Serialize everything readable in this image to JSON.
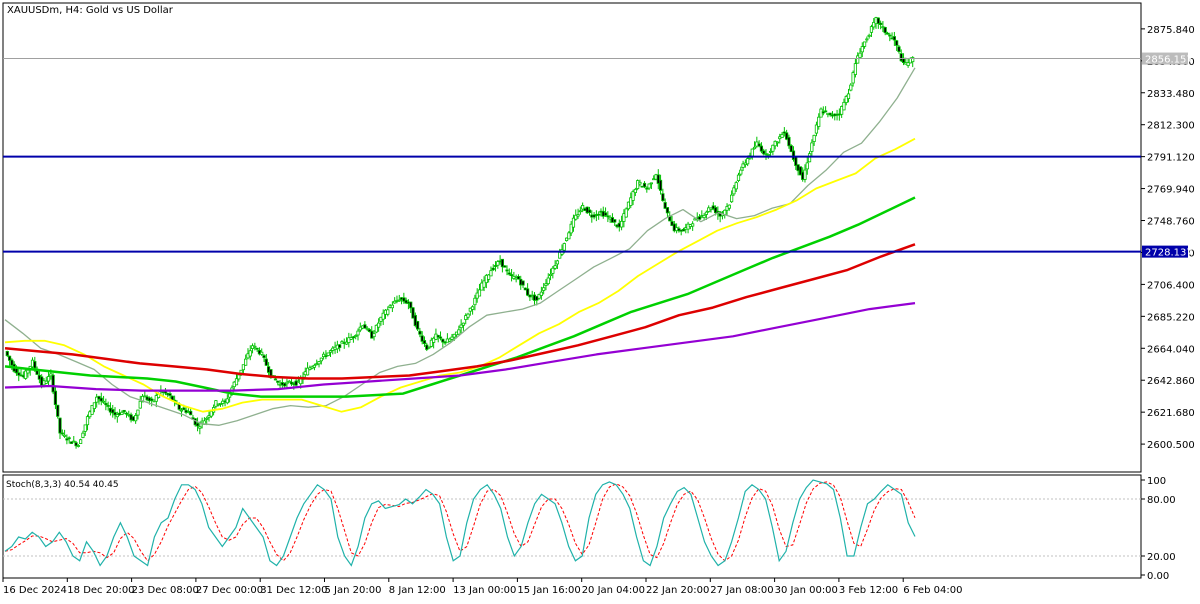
{
  "window": {
    "symbol_title": "XAUUSDm, H4:  Gold vs US Dollar"
  },
  "colors": {
    "background": "#ffffff",
    "frame": "#000000",
    "candle": "#00c000",
    "ma_gray": "#8fb08f",
    "ma_yellow": "#ffff00",
    "ma_green": "#00d000",
    "ma_red": "#dd0000",
    "ma_purple": "#9400d3",
    "hline_blue": "#0000aa",
    "price_line_gray": "#a0a0a0",
    "stoch_main": "#20b2aa",
    "stoch_signal": "#ff0000"
  },
  "chart_data": {
    "type": "line",
    "symbol": "XAUUSDm",
    "timeframe": "H4",
    "ylim": [
      2582,
      2893
    ],
    "price_axis_ticks": [
      "2875.840",
      "2854.660",
      "2833.480",
      "2812.300",
      "2791.120",
      "2769.940",
      "2748.760",
      "2727.580",
      "2706.400",
      "2685.220",
      "2664.040",
      "2642.860",
      "2621.680",
      "2600.500"
    ],
    "time_axis_labels": [
      "16 Dec 2024",
      "18 Dec 20:00",
      "23 Dec 08:00",
      "27 Dec 00:00",
      "31 Dec 12:00",
      "5 Jan 20:00",
      "8 Jan 12:00",
      "13 Jan 00:00",
      "15 Jan 16:00",
      "20 Jan 04:00",
      "22 Jan 20:00",
      "27 Jan 08:00",
      "30 Jan 00:00",
      "3 Feb 12:00",
      "6 Feb 04:00"
    ],
    "current_price": 2856.157,
    "horizontal_lines": [
      {
        "price": 2791.12,
        "label": ""
      },
      {
        "price": 2728.137,
        "label": "2728.137"
      }
    ],
    "price_path": [
      2662,
      2650,
      2645,
      2655,
      2640,
      2646,
      2608,
      2603,
      2600,
      2618,
      2632,
      2626,
      2620,
      2622,
      2616,
      2633,
      2628,
      2636,
      2632,
      2624,
      2622,
      2612,
      2618,
      2628,
      2628,
      2641,
      2653,
      2666,
      2660,
      2646,
      2640,
      2641,
      2641,
      2650,
      2655,
      2660,
      2664,
      2668,
      2672,
      2680,
      2672,
      2684,
      2692,
      2697,
      2694,
      2676,
      2664,
      2672,
      2668,
      2672,
      2682,
      2693,
      2706,
      2716,
      2722,
      2712,
      2710,
      2700,
      2696,
      2708,
      2720,
      2734,
      2749,
      2758,
      2752,
      2754,
      2750,
      2744,
      2760,
      2774,
      2770,
      2780,
      2756,
      2743,
      2742,
      2748,
      2752,
      2758,
      2752,
      2760,
      2780,
      2790,
      2800,
      2792,
      2800,
      2808,
      2790,
      2776,
      2800,
      2822,
      2818,
      2820,
      2834,
      2858,
      2870,
      2882,
      2874,
      2868,
      2852,
      2856
    ],
    "moving_averages": [
      {
        "color": "gray",
        "points": [
          2683,
          2674,
          2664,
          2660,
          2655,
          2650,
          2640,
          2632,
          2628,
          2624,
          2620,
          2614,
          2613,
          2616,
          2620,
          2624,
          2626,
          2625,
          2626,
          2632,
          2640,
          2648,
          2652,
          2654,
          2660,
          2668,
          2678,
          2686,
          2688,
          2690,
          2694,
          2702,
          2710,
          2718,
          2724,
          2730,
          2742,
          2750,
          2756,
          2748,
          2754,
          2750,
          2752,
          2757,
          2760,
          2772,
          2782,
          2794,
          2800,
          2814,
          2830,
          2850
        ]
      },
      {
        "color": "yellow",
        "points": [
          2668,
          2669,
          2669,
          2666,
          2660,
          2652,
          2646,
          2640,
          2632,
          2626,
          2622,
          2624,
          2628,
          2630,
          2630,
          2630,
          2626,
          2622,
          2625,
          2632,
          2638,
          2642,
          2646,
          2648,
          2652,
          2658,
          2666,
          2674,
          2680,
          2688,
          2694,
          2702,
          2712,
          2720,
          2728,
          2735,
          2742,
          2747,
          2751,
          2756,
          2762,
          2770,
          2775,
          2780,
          2790,
          2796,
          2803
        ]
      },
      {
        "color": "green",
        "points": [
          2652,
          2650,
          2648,
          2646,
          2645,
          2644,
          2642,
          2638,
          2634,
          2632,
          2632,
          2632,
          2632,
          2633,
          2634,
          2640,
          2646,
          2652,
          2658,
          2665,
          2672,
          2680,
          2688,
          2694,
          2700,
          2708,
          2716,
          2724,
          2731,
          2738,
          2746,
          2755,
          2764
        ]
      },
      {
        "color": "red",
        "points": [
          2664,
          2662,
          2660,
          2657,
          2654,
          2652,
          2650,
          2647,
          2645,
          2644,
          2644,
          2645,
          2646,
          2649,
          2652,
          2656,
          2661,
          2666,
          2672,
          2678,
          2686,
          2691,
          2698,
          2704,
          2710,
          2716,
          2725,
          2733
        ]
      },
      {
        "color": "purple",
        "points": [
          2638,
          2639,
          2637,
          2636,
          2636,
          2636,
          2637,
          2640,
          2642,
          2644,
          2646,
          2650,
          2655,
          2660,
          2664,
          2668,
          2672,
          2678,
          2684,
          2690,
          2694
        ]
      }
    ],
    "stochastic": {
      "label": "Stoch(8,3,3) 40.54 40.45",
      "ylim": [
        0,
        100
      ],
      "ticks": [
        "100",
        "80.00",
        "20.00",
        "0.00"
      ],
      "levels": [
        80,
        20
      ],
      "main": [
        25,
        30,
        40,
        38,
        45,
        40,
        30,
        35,
        45,
        35,
        20,
        15,
        35,
        25,
        10,
        20,
        40,
        55,
        40,
        20,
        15,
        10,
        40,
        55,
        60,
        80,
        95,
        95,
        90,
        75,
        50,
        40,
        30,
        40,
        50,
        70,
        60,
        50,
        40,
        15,
        10,
        20,
        40,
        60,
        75,
        85,
        95,
        90,
        80,
        40,
        20,
        10,
        30,
        60,
        75,
        78,
        70,
        72,
        74,
        80,
        75,
        82,
        90,
        85,
        75,
        40,
        15,
        20,
        55,
        80,
        90,
        95,
        85,
        70,
        40,
        20,
        30,
        55,
        75,
        85,
        80,
        75,
        55,
        30,
        15,
        20,
        60,
        85,
        95,
        98,
        95,
        85,
        70,
        40,
        15,
        10,
        30,
        60,
        75,
        88,
        92,
        85,
        60,
        35,
        20,
        10,
        15,
        35,
        60,
        88,
        95,
        90,
        80,
        50,
        15,
        25,
        55,
        80,
        92,
        100,
        98,
        96,
        90,
        60,
        20,
        20,
        50,
        75,
        80,
        88,
        95,
        90,
        85,
        55,
        40.54
      ]
    },
    "title": "",
    "xlabel": "",
    "ylabel": ""
  }
}
